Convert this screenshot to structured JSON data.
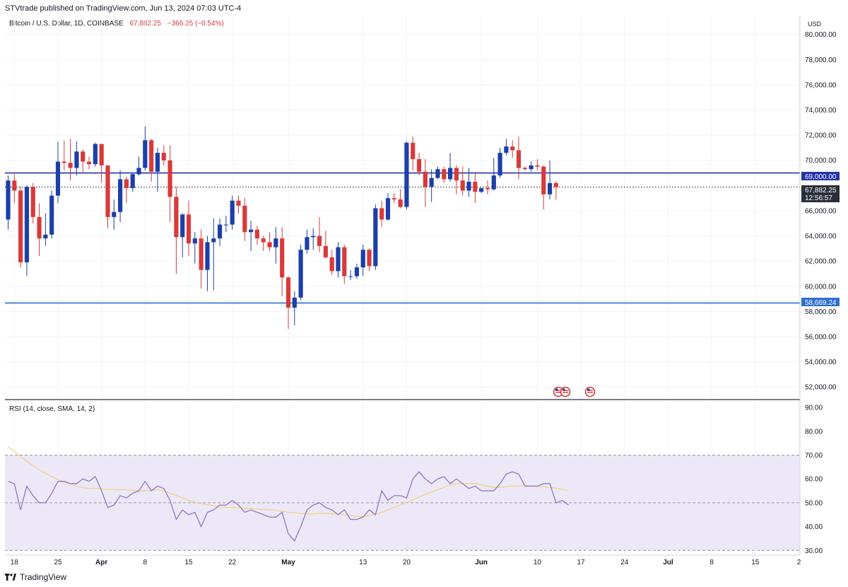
{
  "header": {
    "published": "STVtrade published on TradingView.com, Jun 13, 2024 07:03 UTC-4"
  },
  "legend": {
    "symbol": "Bitcoin / U.S. Dollar, 1D, COINBASE",
    "price": "67,882.25",
    "change": "−366.35 (−0.54%)"
  },
  "price_axis": {
    "currency": "USD",
    "ticks": [
      "80,000.00",
      "78,000.00",
      "76,000.00",
      "74,000.00",
      "72,000.00",
      "70,000.00",
      "66,000.00",
      "64,000.00",
      "62,000.00",
      "60,000.00",
      "58,000.00",
      "56,000.00",
      "54,000.00",
      "52,000.00"
    ],
    "current_price_label": "67,882.25",
    "countdown": "12:56:57",
    "level_high_label": "69,000.00",
    "level_low_label": "58,669.24"
  },
  "rsi": {
    "label": "RSI (14, close, SMA, 14, 2)",
    "ticks": [
      "90.00",
      "80.00",
      "70.00",
      "60.00",
      "50.00",
      "40.00",
      "30.00"
    ]
  },
  "time_axis": {
    "labels": [
      "18",
      "25",
      "Apr",
      "8",
      "15",
      "22",
      "May",
      "13",
      "20",
      "Jun",
      "10",
      "17",
      "24",
      "Jul",
      "8",
      "15",
      "2"
    ]
  },
  "footer": {
    "brand": "TradingView"
  },
  "colors": {
    "up": "#1c3fa8",
    "down": "#d83a3a",
    "level_high": "#2233aa",
    "level_low": "#2d6fce",
    "rsi_line": "#8a6dc0",
    "rsi_ma": "#f2d27a",
    "rsi_band": "#ece8f8"
  },
  "chart_data": [
    {
      "type": "candlestick",
      "title": "Bitcoin / U.S. Dollar, 1D, COINBASE",
      "ylim": [
        51000,
        81500
      ],
      "x_range": [
        "2024-03-17",
        "2024-07-22"
      ],
      "levels": [
        69000,
        58669.24,
        67882.25
      ],
      "candles": [
        {
          "date": "2024-03-17",
          "o": 65300,
          "h": 68800,
          "l": 64500,
          "c": 68400
        },
        {
          "date": "2024-03-18",
          "o": 68400,
          "h": 68900,
          "l": 66600,
          "c": 67600
        },
        {
          "date": "2024-03-19",
          "o": 67600,
          "h": 67900,
          "l": 61500,
          "c": 61900
        },
        {
          "date": "2024-03-20",
          "o": 61900,
          "h": 68000,
          "l": 60800,
          "c": 67900
        },
        {
          "date": "2024-03-21",
          "o": 67900,
          "h": 68200,
          "l": 65000,
          "c": 65500
        },
        {
          "date": "2024-03-22",
          "o": 65500,
          "h": 66600,
          "l": 62400,
          "c": 63800
        },
        {
          "date": "2024-03-23",
          "o": 63800,
          "h": 65800,
          "l": 63200,
          "c": 64100
        },
        {
          "date": "2024-03-24",
          "o": 64100,
          "h": 67600,
          "l": 63800,
          "c": 67200
        },
        {
          "date": "2024-03-25",
          "o": 67200,
          "h": 71500,
          "l": 66600,
          "c": 69900
        },
        {
          "date": "2024-03-26",
          "o": 69900,
          "h": 71600,
          "l": 69200,
          "c": 69800
        },
        {
          "date": "2024-03-27",
          "o": 69800,
          "h": 71700,
          "l": 68400,
          "c": 69400
        },
        {
          "date": "2024-03-28",
          "o": 69400,
          "h": 71500,
          "l": 68800,
          "c": 70700
        },
        {
          "date": "2024-03-29",
          "o": 70700,
          "h": 70900,
          "l": 69000,
          "c": 69900
        },
        {
          "date": "2024-03-30",
          "o": 69900,
          "h": 70300,
          "l": 69300,
          "c": 69700
        },
        {
          "date": "2024-03-31",
          "o": 69700,
          "h": 71400,
          "l": 69500,
          "c": 71300
        },
        {
          "date": "2024-04-01",
          "o": 71300,
          "h": 71300,
          "l": 68200,
          "c": 69600
        },
        {
          "date": "2024-04-02",
          "o": 69600,
          "h": 69600,
          "l": 64600,
          "c": 65500
        },
        {
          "date": "2024-04-03",
          "o": 65500,
          "h": 66900,
          "l": 64500,
          "c": 65900
        },
        {
          "date": "2024-04-04",
          "o": 65900,
          "h": 69200,
          "l": 65100,
          "c": 68500
        },
        {
          "date": "2024-04-05",
          "o": 68500,
          "h": 68700,
          "l": 66600,
          "c": 67800
        },
        {
          "date": "2024-04-06",
          "o": 67800,
          "h": 69000,
          "l": 67500,
          "c": 68900
        },
        {
          "date": "2024-04-07",
          "o": 68900,
          "h": 70300,
          "l": 68800,
          "c": 69400
        },
        {
          "date": "2024-04-08",
          "o": 69400,
          "h": 72700,
          "l": 69200,
          "c": 71600
        },
        {
          "date": "2024-04-09",
          "o": 71600,
          "h": 71700,
          "l": 68300,
          "c": 69100
        },
        {
          "date": "2024-04-10",
          "o": 69100,
          "h": 71000,
          "l": 67500,
          "c": 70600
        },
        {
          "date": "2024-04-11",
          "o": 70600,
          "h": 71200,
          "l": 69600,
          "c": 70000
        },
        {
          "date": "2024-04-12",
          "o": 70000,
          "h": 71200,
          "l": 65100,
          "c": 67100
        },
        {
          "date": "2024-04-13",
          "o": 67100,
          "h": 67900,
          "l": 61000,
          "c": 63900
        },
        {
          "date": "2024-04-14",
          "o": 63900,
          "h": 65800,
          "l": 62300,
          "c": 65700
        },
        {
          "date": "2024-04-15",
          "o": 65700,
          "h": 66800,
          "l": 62400,
          "c": 63400
        },
        {
          "date": "2024-04-16",
          "o": 63400,
          "h": 64300,
          "l": 61800,
          "c": 63800
        },
        {
          "date": "2024-04-17",
          "o": 63800,
          "h": 64500,
          "l": 59800,
          "c": 61300
        },
        {
          "date": "2024-04-18",
          "o": 61300,
          "h": 64000,
          "l": 59600,
          "c": 63500
        },
        {
          "date": "2024-04-19",
          "o": 63500,
          "h": 65400,
          "l": 59700,
          "c": 63800
        },
        {
          "date": "2024-04-20",
          "o": 63800,
          "h": 65400,
          "l": 63200,
          "c": 64900
        },
        {
          "date": "2024-04-21",
          "o": 64900,
          "h": 65600,
          "l": 64300,
          "c": 64900
        },
        {
          "date": "2024-04-22",
          "o": 64900,
          "h": 67200,
          "l": 64500,
          "c": 66800
        },
        {
          "date": "2024-04-23",
          "o": 66800,
          "h": 67200,
          "l": 65800,
          "c": 66400
        },
        {
          "date": "2024-04-24",
          "o": 66400,
          "h": 67000,
          "l": 63600,
          "c": 64300
        },
        {
          "date": "2024-04-25",
          "o": 64300,
          "h": 65200,
          "l": 62800,
          "c": 64500
        },
        {
          "date": "2024-04-26",
          "o": 64500,
          "h": 64800,
          "l": 63300,
          "c": 63800
        },
        {
          "date": "2024-04-27",
          "o": 63800,
          "h": 64000,
          "l": 62800,
          "c": 63500
        },
        {
          "date": "2024-04-28",
          "o": 63500,
          "h": 64300,
          "l": 62800,
          "c": 63100
        },
        {
          "date": "2024-04-29",
          "o": 63100,
          "h": 64700,
          "l": 61800,
          "c": 63800
        },
        {
          "date": "2024-04-30",
          "o": 63800,
          "h": 64700,
          "l": 59200,
          "c": 60700
        },
        {
          "date": "2024-05-01",
          "o": 60700,
          "h": 60800,
          "l": 56600,
          "c": 58300
        },
        {
          "date": "2024-05-02",
          "o": 58300,
          "h": 59600,
          "l": 56900,
          "c": 59100
        },
        {
          "date": "2024-05-03",
          "o": 59100,
          "h": 63300,
          "l": 58900,
          "c": 62900
        },
        {
          "date": "2024-05-04",
          "o": 62900,
          "h": 64500,
          "l": 62600,
          "c": 63900
        },
        {
          "date": "2024-05-05",
          "o": 63900,
          "h": 64600,
          "l": 62900,
          "c": 64000
        },
        {
          "date": "2024-05-06",
          "o": 64000,
          "h": 65500,
          "l": 62700,
          "c": 63200
        },
        {
          "date": "2024-05-07",
          "o": 63200,
          "h": 64400,
          "l": 62200,
          "c": 62300
        },
        {
          "date": "2024-05-08",
          "o": 62300,
          "h": 62900,
          "l": 60900,
          "c": 61200
        },
        {
          "date": "2024-05-09",
          "o": 61200,
          "h": 63500,
          "l": 60700,
          "c": 63100
        },
        {
          "date": "2024-05-10",
          "o": 63100,
          "h": 63300,
          "l": 60200,
          "c": 60800
        },
        {
          "date": "2024-05-11",
          "o": 60800,
          "h": 61300,
          "l": 60500,
          "c": 60800
        },
        {
          "date": "2024-05-12",
          "o": 60800,
          "h": 61800,
          "l": 60600,
          "c": 61500
        },
        {
          "date": "2024-05-13",
          "o": 61500,
          "h": 63300,
          "l": 60800,
          "c": 62900
        },
        {
          "date": "2024-05-14",
          "o": 62900,
          "h": 63000,
          "l": 61200,
          "c": 61600
        },
        {
          "date": "2024-05-15",
          "o": 61600,
          "h": 66500,
          "l": 61300,
          "c": 66200
        },
        {
          "date": "2024-05-16",
          "o": 66200,
          "h": 66800,
          "l": 64700,
          "c": 65300
        },
        {
          "date": "2024-05-17",
          "o": 65300,
          "h": 67400,
          "l": 65200,
          "c": 67000
        },
        {
          "date": "2024-05-18",
          "o": 67000,
          "h": 67400,
          "l": 66600,
          "c": 66900
        },
        {
          "date": "2024-05-19",
          "o": 66900,
          "h": 67700,
          "l": 66200,
          "c": 66300
        },
        {
          "date": "2024-05-20",
          "o": 66300,
          "h": 71500,
          "l": 66100,
          "c": 71400
        },
        {
          "date": "2024-05-21",
          "o": 71400,
          "h": 71900,
          "l": 69200,
          "c": 70100
        },
        {
          "date": "2024-05-22",
          "o": 70100,
          "h": 70600,
          "l": 68800,
          "c": 69100
        },
        {
          "date": "2024-05-23",
          "o": 69100,
          "h": 70100,
          "l": 66300,
          "c": 67900
        },
        {
          "date": "2024-05-24",
          "o": 67900,
          "h": 69300,
          "l": 66700,
          "c": 68600
        },
        {
          "date": "2024-05-25",
          "o": 68600,
          "h": 69500,
          "l": 68500,
          "c": 69300
        },
        {
          "date": "2024-05-26",
          "o": 69300,
          "h": 69500,
          "l": 68200,
          "c": 68500
        },
        {
          "date": "2024-05-27",
          "o": 68500,
          "h": 70600,
          "l": 68300,
          "c": 69400
        },
        {
          "date": "2024-05-28",
          "o": 69400,
          "h": 69600,
          "l": 67300,
          "c": 68400
        },
        {
          "date": "2024-05-29",
          "o": 68400,
          "h": 69500,
          "l": 67200,
          "c": 67600
        },
        {
          "date": "2024-05-30",
          "o": 67600,
          "h": 69400,
          "l": 67100,
          "c": 68300
        },
        {
          "date": "2024-05-31",
          "o": 68300,
          "h": 69000,
          "l": 66600,
          "c": 67500
        },
        {
          "date": "2024-06-01",
          "o": 67500,
          "h": 67800,
          "l": 67400,
          "c": 67800
        },
        {
          "date": "2024-06-02",
          "o": 67800,
          "h": 68400,
          "l": 67300,
          "c": 67700
        },
        {
          "date": "2024-06-03",
          "o": 67700,
          "h": 70200,
          "l": 67600,
          "c": 68800
        },
        {
          "date": "2024-06-04",
          "o": 68800,
          "h": 71000,
          "l": 68600,
          "c": 70600
        },
        {
          "date": "2024-06-05",
          "o": 70600,
          "h": 71700,
          "l": 70400,
          "c": 71100
        },
        {
          "date": "2024-06-06",
          "o": 71100,
          "h": 71600,
          "l": 70200,
          "c": 70800
        },
        {
          "date": "2024-06-07",
          "o": 70800,
          "h": 71900,
          "l": 68500,
          "c": 69400
        },
        {
          "date": "2024-06-08",
          "o": 69400,
          "h": 69500,
          "l": 69200,
          "c": 69300
        },
        {
          "date": "2024-06-09",
          "o": 69300,
          "h": 69900,
          "l": 69100,
          "c": 69600
        },
        {
          "date": "2024-06-10",
          "o": 69600,
          "h": 70100,
          "l": 69200,
          "c": 69500
        },
        {
          "date": "2024-06-11",
          "o": 69500,
          "h": 69600,
          "l": 66100,
          "c": 67300
        },
        {
          "date": "2024-06-12",
          "o": 67300,
          "h": 70000,
          "l": 66900,
          "c": 68200
        },
        {
          "date": "2024-06-13",
          "o": 68200,
          "h": 68300,
          "l": 66900,
          "c": 67882.25
        }
      ]
    },
    {
      "type": "line",
      "title": "RSI (14, close, SMA, 14, 2)",
      "ylim": [
        28,
        93
      ],
      "bands": [
        70,
        50,
        30
      ],
      "x_range": [
        "2024-03-17",
        "2024-07-22"
      ],
      "series": [
        {
          "values": [
            59,
            58,
            47,
            57,
            53,
            50,
            50,
            54,
            59,
            59,
            58,
            58,
            60,
            59,
            61,
            55,
            48,
            49,
            53,
            52,
            54,
            55,
            59,
            55,
            57,
            56,
            51,
            43,
            47,
            45,
            46,
            40,
            46,
            47,
            49,
            49,
            51,
            49,
            46,
            47,
            46,
            45,
            44,
            44,
            46,
            37,
            34,
            40,
            47,
            49,
            50,
            48,
            47,
            45,
            47,
            43,
            43,
            44,
            47,
            45,
            55,
            51,
            53,
            53,
            52,
            60,
            63,
            60,
            58,
            60,
            61,
            58,
            60,
            58,
            56,
            57,
            55,
            55,
            55,
            58,
            62,
            63,
            62,
            57,
            57,
            57,
            58,
            58,
            50,
            51,
            49
          ]
        },
        {
          "values": [
            73.5,
            71.5,
            69.5,
            67.5,
            65.5,
            63.8,
            62.5,
            61.0,
            59.8,
            58.5,
            58.0,
            57.0,
            56.5,
            56.0,
            56.0,
            55.8,
            55.6,
            55.5,
            55.5,
            55.4,
            55.2,
            55.0,
            55.0,
            55.2,
            55.6,
            55.0,
            54.0,
            53.0,
            52.0,
            51.0,
            50.2,
            49.6,
            49.2,
            48.8,
            48.3,
            48.1,
            48.0,
            47.9,
            47.8,
            47.6,
            47.4,
            47.2,
            47.0,
            46.9,
            46.5,
            46.0,
            45.8,
            45.5,
            45.3,
            45.3,
            45.5,
            45.5,
            45.4,
            45.2,
            45.0,
            44.5,
            44.2,
            44.3,
            44.6,
            45.0,
            46.0,
            47.0,
            48.0,
            49.0,
            50.0,
            51.2,
            52.5,
            53.5,
            54.5,
            55.5,
            56.5,
            57.5,
            58.0,
            58.0,
            58.0,
            58.0,
            57.5,
            57.0,
            56.5,
            56.5,
            56.8,
            57.0,
            57.0,
            57.2,
            57.0,
            56.8,
            56.7,
            56.5,
            56.0,
            55.6,
            55.0
          ]
        }
      ]
    }
  ]
}
